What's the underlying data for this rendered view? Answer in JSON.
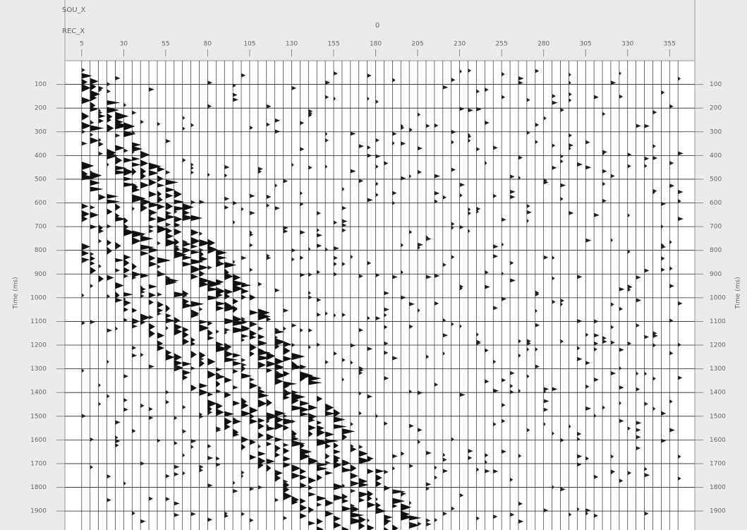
{
  "chart_data": {
    "type": "seismic",
    "source_label": "SOU_X",
    "receiver_label": "REC_X",
    "source_value": "0",
    "y_label": "Time (ms)",
    "xlim": [
      -5,
      370
    ],
    "xticks": [
      5,
      30,
      55,
      80,
      105,
      130,
      155,
      180,
      205,
      230,
      255,
      280,
      305,
      330,
      355
    ],
    "ylim": [
      0,
      1980
    ],
    "yticks": [
      100,
      200,
      300,
      400,
      500,
      600,
      700,
      800,
      900,
      1000,
      1100,
      1200,
      1300,
      1400,
      1500,
      1600,
      1700,
      1800,
      1900
    ],
    "grid": true
  }
}
